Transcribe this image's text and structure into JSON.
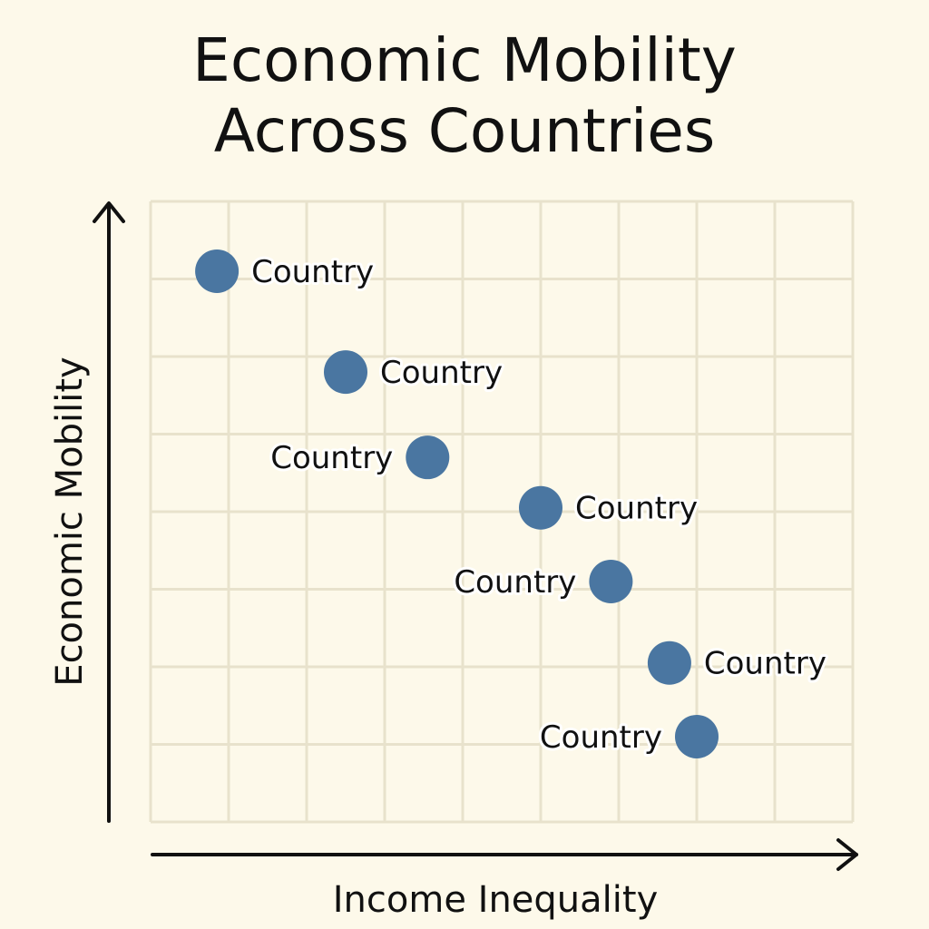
{
  "chart_data": {
    "type": "scatter",
    "title_lines": [
      "Economic Mobility",
      "Across Countries"
    ],
    "xlabel": "Income Inequality",
    "ylabel": "Economic Mobility",
    "grid": true,
    "xlim": [
      0,
      9
    ],
    "ylim": [
      0,
      8
    ],
    "points": [
      {
        "x": 0.85,
        "y": 7.1,
        "label": "Country",
        "label_side": "right"
      },
      {
        "x": 2.5,
        "y": 5.8,
        "label": "Country",
        "label_side": "right"
      },
      {
        "x": 3.55,
        "y": 4.7,
        "label": "Country",
        "label_side": "left"
      },
      {
        "x": 5.0,
        "y": 4.05,
        "label": "Country",
        "label_side": "right"
      },
      {
        "x": 5.9,
        "y": 3.1,
        "label": "Country",
        "label_side": "left"
      },
      {
        "x": 6.65,
        "y": 2.05,
        "label": "Country",
        "label_side": "right"
      },
      {
        "x": 7.0,
        "y": 1.1,
        "label": "Country",
        "label_side": "left"
      }
    ],
    "colors": {
      "point": "#4a76a1",
      "grid": "#e8e2cc",
      "axis": "#111111",
      "background": "#fdf9ea"
    }
  }
}
